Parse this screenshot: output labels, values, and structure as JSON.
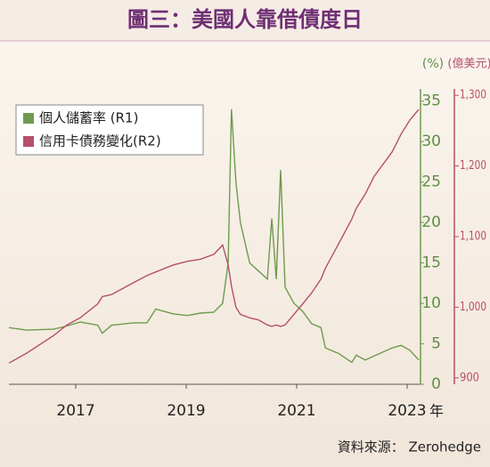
{
  "chart_data": {
    "type": "line",
    "title": "圖三：美國人靠借債度日",
    "y_label": "(%)",
    "y2_label": "(億美元)",
    "x_unit": "年",
    "source": "資料來源： Zerohedge",
    "x": [
      2015.79,
      2016.11,
      2016.6,
      2016.84,
      2017.08,
      2017.4,
      2017.48,
      2017.65,
      2018.05,
      2018.29,
      2018.45,
      2018.77,
      2019.02,
      2019.26,
      2019.5,
      2019.66,
      2019.76,
      2019.82,
      2019.9,
      2019.98,
      2020.15,
      2020.31,
      2020.47,
      2020.55,
      2020.63,
      2020.71,
      2020.79,
      2020.95,
      2021.11,
      2021.27,
      2021.44,
      2021.52,
      2021.76,
      2022.0,
      2022.08,
      2022.24,
      2022.4,
      2022.73,
      2022.89,
      2023.05,
      2023.21
    ],
    "series": [
      {
        "name": "個人儲蓄率 (R1)",
        "color": "#6f9a4e",
        "axis": "y",
        "values": [
          7,
          6.7,
          6.8,
          7.2,
          7.7,
          7.3,
          6.3,
          7.3,
          7.6,
          7.6,
          9.3,
          8.7,
          8.5,
          8.8,
          8.9,
          10,
          15,
          34,
          25,
          20,
          15,
          14,
          13,
          20.5,
          13,
          26.5,
          12,
          10,
          9,
          7.5,
          7,
          4.5,
          3.8,
          2.7,
          3.6,
          3,
          3.5,
          4.5,
          4.8,
          4.2,
          3
        ]
      },
      {
        "name": "信用卡債務變化(R2)",
        "color": "#b5506b",
        "axis": "y2",
        "values": [
          921,
          935,
          960,
          975,
          985,
          1005,
          1015,
          1018,
          1035,
          1045,
          1050,
          1060,
          1065,
          1068,
          1075,
          1088,
          1060,
          1030,
          1000,
          990,
          985,
          982,
          975,
          973,
          975,
          973,
          975,
          990,
          1005,
          1020,
          1040,
          1055,
          1090,
          1125,
          1140,
          1160,
          1185,
          1220,
          1245,
          1265,
          1280
        ]
      }
    ],
    "xlim": [
      2015.79,
      2023.21
    ],
    "xticks": [
      2017,
      2019,
      2021,
      2023
    ],
    "ylim": [
      0,
      36.5
    ],
    "yticks": [
      0,
      5,
      10,
      15,
      20,
      25,
      30,
      35
    ],
    "y2lim": [
      891,
      1309
    ],
    "y2ticks": [
      900,
      {
        "value": 1000,
        "label": "1,000"
      },
      {
        "value": 1100,
        "label": "1,100"
      },
      {
        "value": 1200,
        "label": "1,200"
      },
      {
        "value": 1300,
        "label": "1,300"
      }
    ],
    "legend": "upper left"
  }
}
